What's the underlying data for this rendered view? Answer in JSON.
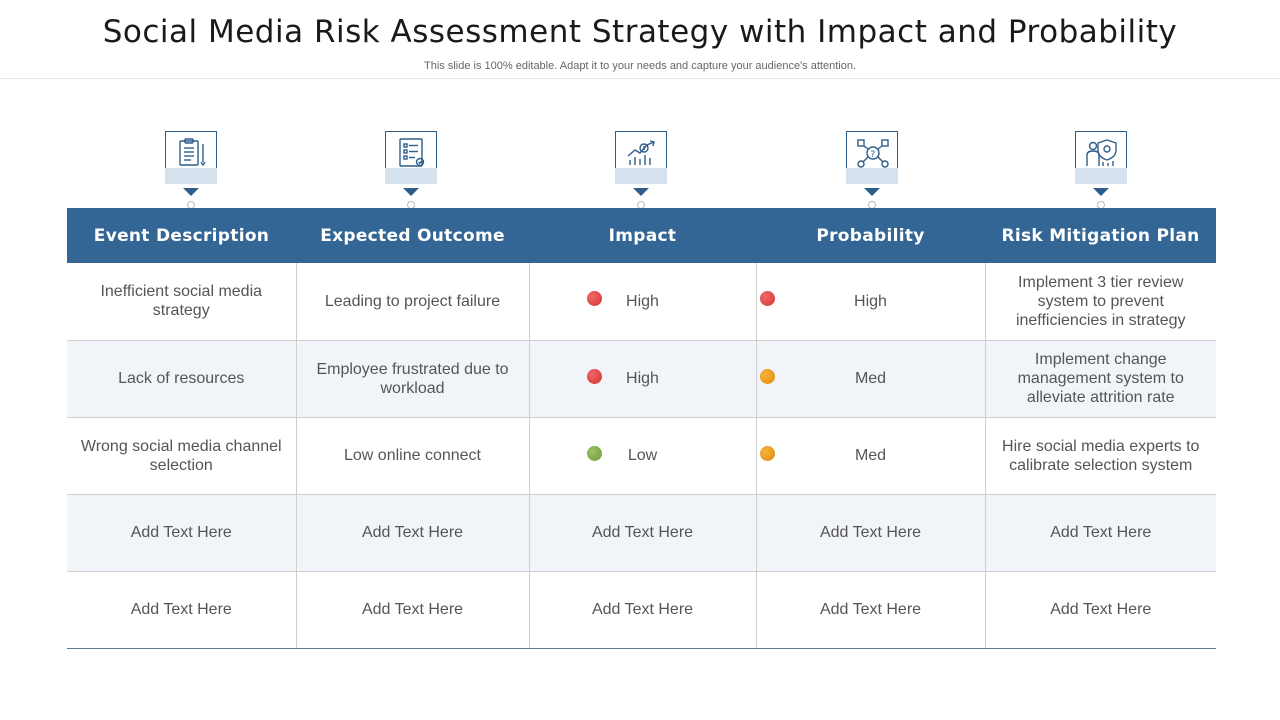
{
  "header": {
    "title": "Social Media Risk Assessment Strategy with Impact and Probability",
    "subtitle": "This slide is 100% editable. Adapt it to your needs and capture your audience's attention."
  },
  "icons": [
    "clipboard-checklist-icon",
    "checklist-document-icon",
    "growth-chart-icon",
    "risk-network-icon",
    "person-shield-icon"
  ],
  "columns": [
    "Event Description",
    "Expected Outcome",
    "Impact",
    "Probability",
    "Risk Mitigation  Plan"
  ],
  "rows": [
    {
      "event": "Inefficient  social media strategy",
      "outcome": "Leading to project failure",
      "impact": "High",
      "probability": "High",
      "mitigation": "Implement  3 tier review system to prevent inefficiencies in strategy"
    },
    {
      "event": "Lack of resources",
      "outcome": "Employee frustrated due to workload",
      "impact": "High",
      "probability": "Med",
      "mitigation": "Implement  change management system to alleviate attrition rate"
    },
    {
      "event": "Wrong social media channel selection",
      "outcome": "Low online connect",
      "impact": "Low",
      "probability": "Med",
      "mitigation": "Hire social media experts to calibrate selection system"
    },
    {
      "event": "Add Text Here",
      "outcome": "Add Text Here",
      "impact": "Add Text Here",
      "probability": "Add Text Here",
      "mitigation": "Add Text Here"
    },
    {
      "event": "Add Text Here",
      "outcome": "Add Text Here",
      "impact": "Add Text Here",
      "probability": "Add Text Here",
      "mitigation": "Add Text Here"
    }
  ],
  "colors": {
    "header_bar": "#336694",
    "high": "#d42f2f",
    "medium": "#e08a0b",
    "low": "#6f9a3c"
  }
}
